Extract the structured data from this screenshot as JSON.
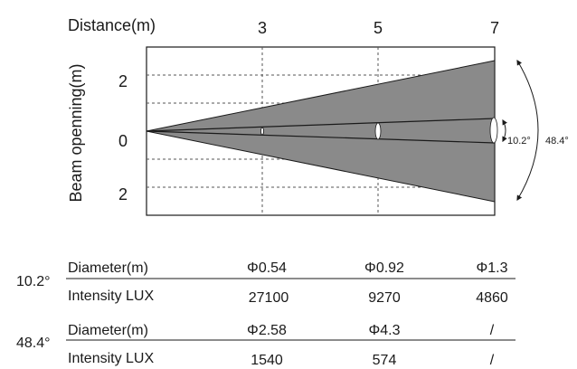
{
  "diagram": {
    "x_axis_label": "Distance(m)",
    "y_axis_label": "Beam openning(m)",
    "distance_ticks": [
      "3",
      "5",
      "7"
    ],
    "opening_ticks": [
      "2",
      "0",
      "2"
    ],
    "narrow_angle": "10.2°",
    "wide_angle": "48.4°",
    "colors": {
      "beam_fill": "#8a8a8a",
      "line": "#1a1a1a",
      "grid": "#555555"
    }
  },
  "table": {
    "groups": [
      {
        "angle": "10.2°",
        "diameter_label": "Diameter(m)",
        "diameters": [
          "Φ0.54",
          "Φ0.92",
          "Φ1.3"
        ],
        "intensity_label": "Intensity LUX",
        "intensities": [
          "27100",
          "9270",
          "4860"
        ]
      },
      {
        "angle": "48.4°",
        "diameter_label": "Diameter(m)",
        "diameters": [
          "Φ2.58",
          "Φ4.3",
          "/"
        ],
        "intensity_label": "Intensity LUX",
        "intensities": [
          "1540",
          "574",
          "/"
        ]
      }
    ]
  }
}
